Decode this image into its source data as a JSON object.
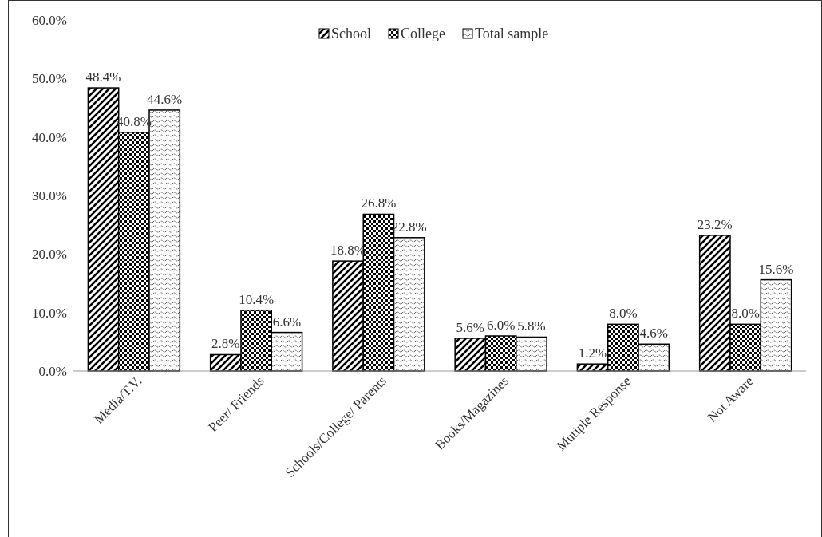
{
  "chart_data": {
    "type": "bar",
    "categories": [
      "Media/T.V.",
      "Peer/ Friends",
      "Schools/College/ Parents",
      "Books/Magazines",
      "Mutiple Response",
      "Not Aware"
    ],
    "series": [
      {
        "name": "School",
        "color": "#000000",
        "values": [
          48.4,
          2.8,
          18.8,
          5.6,
          1.2,
          23.2
        ],
        "value_labels": [
          "48.4%",
          "2.8%",
          "18.8%",
          "5.6%",
          "1.2%",
          "23.2%"
        ]
      },
      {
        "name": "College",
        "color": "#000000",
        "values": [
          40.8,
          10.4,
          26.8,
          6.0,
          8.0,
          8.0
        ],
        "value_labels": [
          "40.8%",
          "10.4%",
          "26.8%",
          "6.0%",
          "8.0%",
          "8.0%"
        ]
      },
      {
        "name": "Total sample",
        "color": "#000000",
        "values": [
          44.6,
          6.6,
          22.8,
          5.8,
          4.6,
          15.6
        ],
        "value_labels": [
          "44.6%",
          "6.6%",
          "22.8%",
          "5.8%",
          "4.6%",
          "15.6%"
        ]
      }
    ],
    "ylim": [
      0,
      60
    ],
    "yticks": [
      {
        "value": 0,
        "label": "0.0%"
      },
      {
        "value": 10,
        "label": "10.0%"
      },
      {
        "value": 20,
        "label": "20.0%"
      },
      {
        "value": 30,
        "label": "30.0%"
      },
      {
        "value": 40,
        "label": "40.0%"
      },
      {
        "value": 50,
        "label": "50.0%"
      },
      {
        "value": 60,
        "label": "60.0%"
      }
    ],
    "grid": false,
    "legend": "top"
  }
}
